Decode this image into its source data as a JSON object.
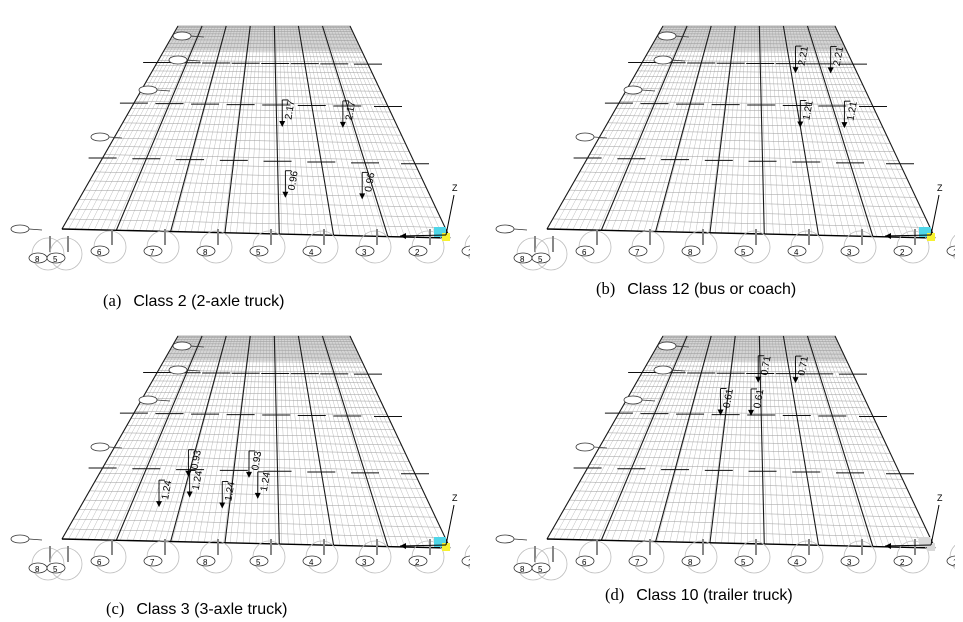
{
  "panels": [
    {
      "id": "a",
      "caption_letter": "(a)",
      "caption_text": "Class 2 (2-axle truck)",
      "load_labels": [
        "2.17",
        "2.17",
        "0.96",
        "0.96"
      ],
      "support_labels": [
        "8",
        "5",
        "6",
        "7",
        "8",
        "5",
        "4",
        "3",
        "2",
        "1"
      ],
      "axis_label": "Z",
      "colors": {
        "deck": "#d4d4d4",
        "node_cyan": "#4fd6e8",
        "node_yellow": "#f7f230"
      }
    },
    {
      "id": "b",
      "caption_letter": "(b)",
      "caption_text": "Class 12 (bus or coach)",
      "load_labels": [
        "2.21",
        "2.21",
        "1.21",
        "1.21"
      ],
      "support_labels": [
        "8",
        "5",
        "6",
        "7",
        "8",
        "5",
        "4",
        "3",
        "2",
        "1"
      ],
      "axis_label": "Z",
      "colors": {
        "deck": "#d4d4d4",
        "node_cyan": "#4fd6e8",
        "node_yellow": "#f7f230"
      }
    },
    {
      "id": "c",
      "caption_letter": "(c)",
      "caption_text": "Class 3 (3-axle truck)",
      "load_labels": [
        "0.93",
        "0.93",
        "1.24",
        "1.24",
        "1.24",
        "1.24"
      ],
      "support_labels": [
        "8",
        "5",
        "6",
        "7",
        "8",
        "5",
        "4",
        "3",
        "2",
        "1"
      ],
      "axis_label": "Z",
      "colors": {
        "deck": "#d4d4d4",
        "node_cyan": "#4fd6e8",
        "node_yellow": "#f7f230"
      }
    },
    {
      "id": "d",
      "caption_letter": "(d)",
      "caption_text": "Class 10 (trailer truck)",
      "load_labels": [
        "0.71",
        "0.71",
        "0.61",
        "0.61"
      ],
      "support_labels": [
        "8",
        "5",
        "6",
        "7",
        "8",
        "5",
        "4",
        "3",
        "2",
        "1"
      ],
      "axis_label": "Z",
      "colors": {
        "deck": "#d4d4d4",
        "node_cyan": "#d9d9d9",
        "node_yellow": "#d9d9d9"
      }
    }
  ]
}
